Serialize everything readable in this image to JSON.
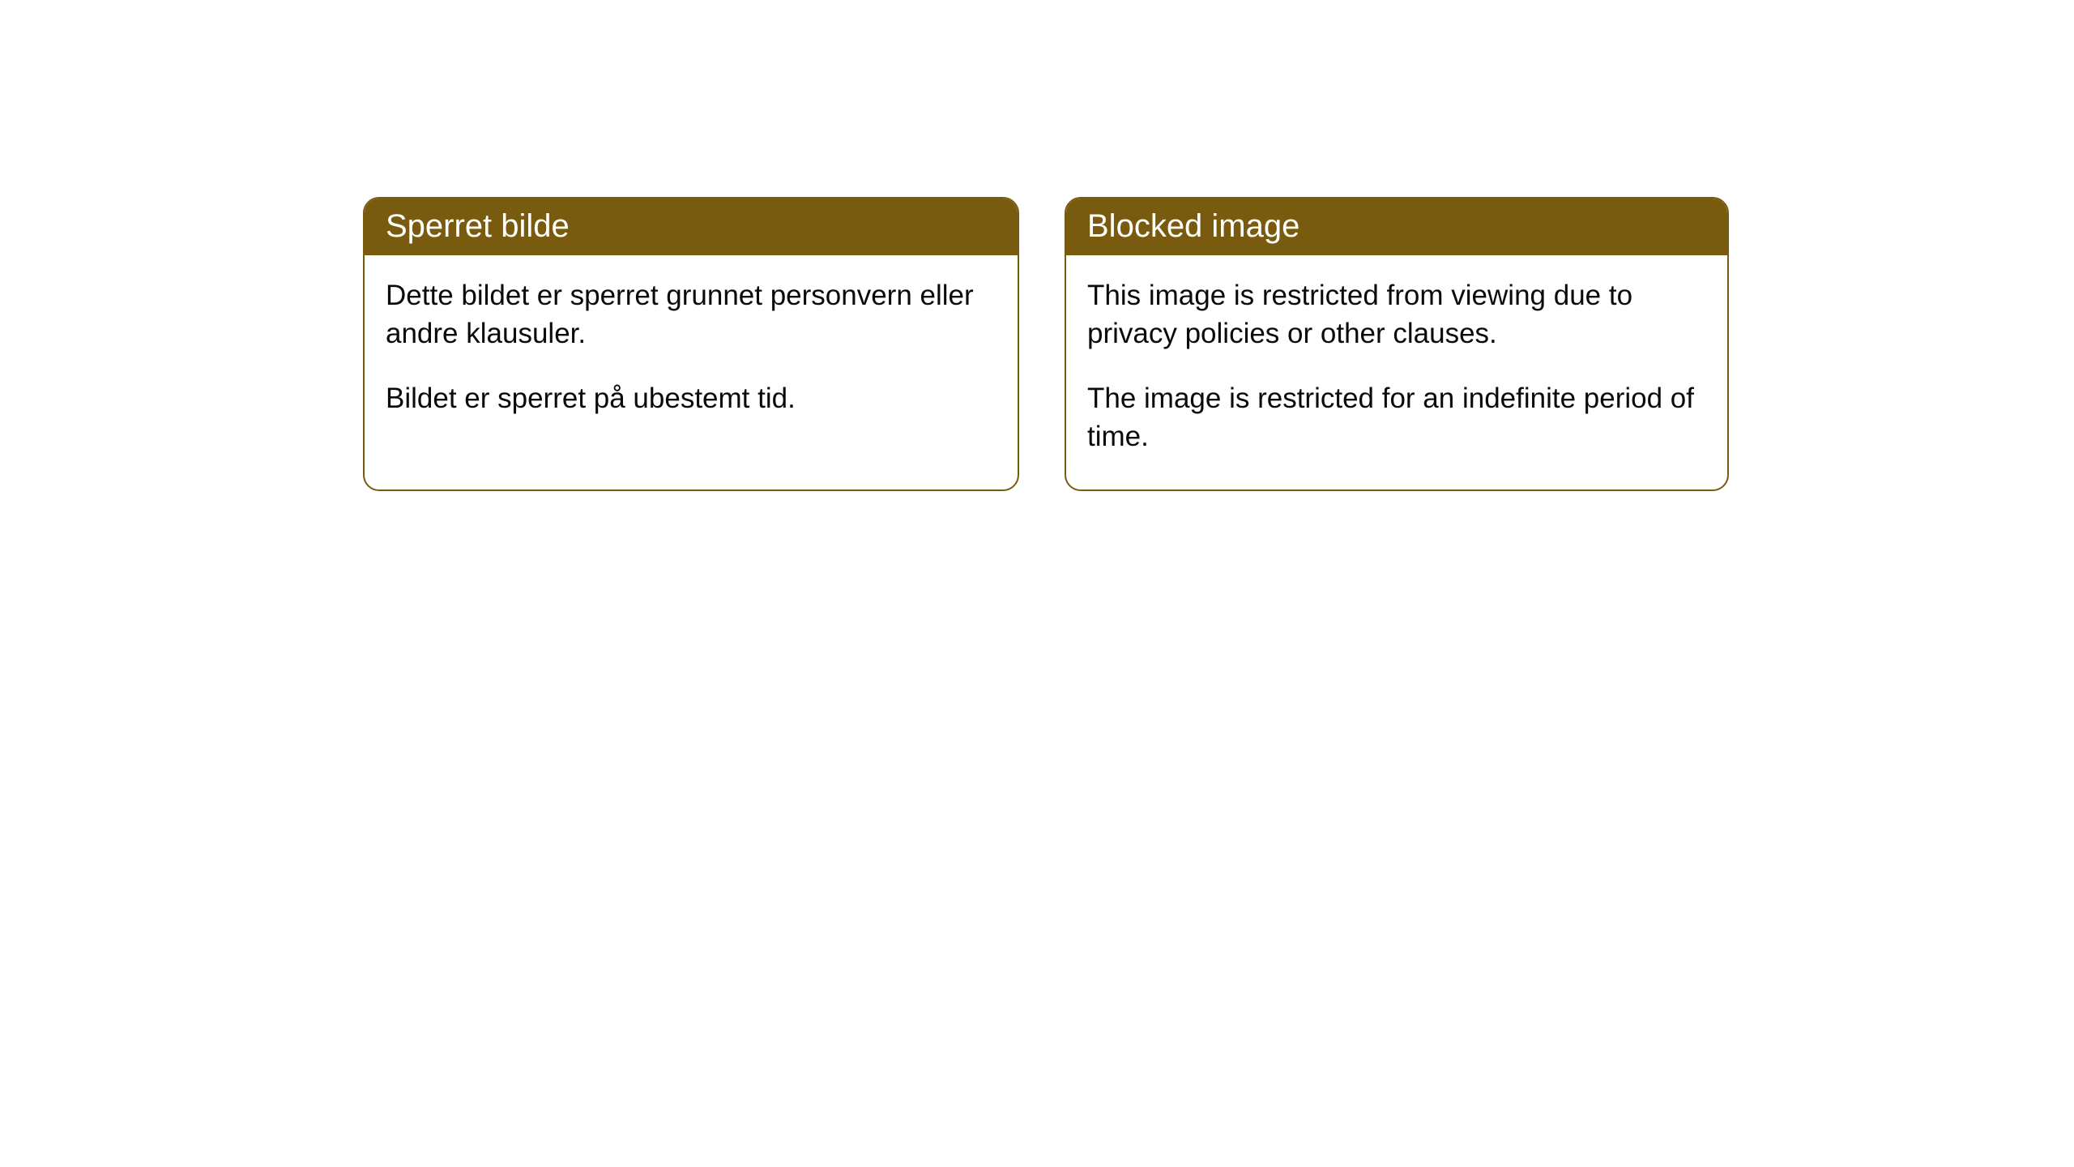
{
  "cards": {
    "norwegian": {
      "title": "Sperret bilde",
      "paragraph1": "Dette bildet er sperret grunnet personvern eller andre klausuler.",
      "paragraph2": "Bildet er sperret på ubestemt tid."
    },
    "english": {
      "title": "Blocked image",
      "paragraph1": "This image is restricted from viewing due to privacy policies or other clauses.",
      "paragraph2": "The image is restricted for an indefinite period of time."
    }
  },
  "style": {
    "header_bg_color": "#785b0f",
    "header_text_color": "#ffffff",
    "body_text_color": "#0a0a0a",
    "border_color": "#785b0f",
    "background_color": "#ffffff",
    "border_radius": 20,
    "title_fontsize": 40,
    "body_fontsize": 35
  }
}
